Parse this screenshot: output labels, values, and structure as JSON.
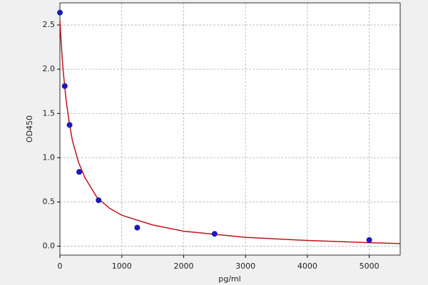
{
  "chart_data": {
    "type": "scatter",
    "x_label": "pg/ml",
    "y_label": "OD450",
    "x": [
      0,
      78,
      156,
      312,
      625,
      1250,
      2500,
      5000
    ],
    "values": [
      2.64,
      1.81,
      1.37,
      0.84,
      0.52,
      0.21,
      0.14,
      0.07
    ],
    "color": "#1a1ab8",
    "curve": {
      "color": "#c0141c",
      "x": [
        0,
        25,
        50,
        100,
        150,
        200,
        300,
        400,
        600,
        800,
        1000,
        1500,
        2000,
        3000,
        4000,
        5000,
        5500
      ],
      "values": [
        2.55,
        2.25,
        2.0,
        1.65,
        1.4,
        1.2,
        0.95,
        0.78,
        0.55,
        0.43,
        0.35,
        0.24,
        0.17,
        0.1,
        0.065,
        0.04,
        0.03
      ]
    },
    "xlim": [
      0,
      5500
    ],
    "xticks": [
      0,
      1000,
      2000,
      3000,
      4000,
      5000
    ],
    "ylim": [
      -0.1,
      2.75
    ],
    "yticks": [
      {
        "value": 0,
        "label": "0.0"
      },
      0.5,
      {
        "value": 1,
        "label": "1.0"
      },
      1.5,
      {
        "value": 2,
        "label": "2.0"
      },
      2.5
    ],
    "grid": true
  }
}
